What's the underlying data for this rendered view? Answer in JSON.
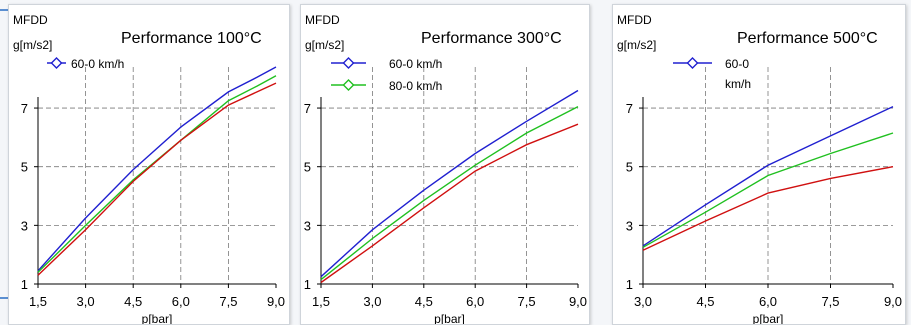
{
  "chart_data": [
    {
      "type": "line",
      "title": "Performance 100°C",
      "ylabel_line1": "MFDD",
      "ylabel_line2": "g[m/s2]",
      "xlabel": "p[bar]",
      "xlim": [
        1.5,
        9.0
      ],
      "ylim": [
        1,
        8.4
      ],
      "x_ticks": [
        "1,5",
        "3,0",
        "4,5",
        "6,0",
        "7,5",
        "9,0"
      ],
      "y_ticks": [
        "1",
        "3",
        "5",
        "7"
      ],
      "grid": true,
      "legend": [
        "60-0 km/h"
      ],
      "series": [
        {
          "color": "#2020d0",
          "x": [
            1.5,
            3.0,
            4.5,
            6.0,
            7.5,
            8.4,
            9.0
          ],
          "y": [
            1.45,
            3.25,
            4.9,
            6.35,
            7.55,
            8.05,
            8.4
          ]
        },
        {
          "color": "#20c020",
          "x": [
            1.5,
            3.0,
            4.5,
            6.0,
            7.5,
            8.4,
            9.0
          ],
          "y": [
            1.4,
            3.0,
            4.55,
            5.9,
            7.25,
            7.75,
            8.1
          ]
        },
        {
          "color": "#d01010",
          "x": [
            1.5,
            3.0,
            4.5,
            6.0,
            7.5,
            8.4,
            9.0
          ],
          "y": [
            1.3,
            2.85,
            4.5,
            5.9,
            7.1,
            7.55,
            7.85
          ]
        }
      ]
    },
    {
      "type": "line",
      "title": "Performance 300°C",
      "ylabel_line1": "MFDD",
      "ylabel_line2": "g[m/s2]",
      "xlabel": "p[bar]",
      "xlim": [
        1.5,
        9.0
      ],
      "ylim": [
        1,
        8.4
      ],
      "x_ticks": [
        "1,5",
        "3,0",
        "4,5",
        "6,0",
        "7,5",
        "9,0"
      ],
      "y_ticks": [
        "1",
        "3",
        "5",
        "7"
      ],
      "grid": true,
      "legend": [
        "60-0 km/h",
        "80-0 km/h"
      ],
      "series": [
        {
          "color": "#2020d0",
          "x": [
            1.5,
            3.0,
            4.5,
            6.0,
            7.5,
            9.0
          ],
          "y": [
            1.25,
            2.85,
            4.2,
            5.45,
            6.55,
            7.6
          ]
        },
        {
          "color": "#20c020",
          "x": [
            1.5,
            3.0,
            4.5,
            6.0,
            7.5,
            9.0
          ],
          "y": [
            1.15,
            2.55,
            3.85,
            5.05,
            6.15,
            7.05
          ]
        },
        {
          "color": "#d01010",
          "x": [
            1.5,
            3.0,
            4.5,
            6.0,
            7.5,
            9.0
          ],
          "y": [
            1.05,
            2.3,
            3.6,
            4.85,
            5.75,
            6.45
          ]
        }
      ]
    },
    {
      "type": "line",
      "title": "Performance 500°C",
      "ylabel_line1": "MFDD",
      "ylabel_line2": "g[m/s2]",
      "xlabel": "p[bar]",
      "xlim": [
        3.0,
        9.0
      ],
      "ylim": [
        1,
        8.4
      ],
      "x_ticks": [
        "3,0",
        "4,5",
        "6,0",
        "7,5",
        "9,0"
      ],
      "y_ticks": [
        "1",
        "3",
        "5",
        "7"
      ],
      "grid": true,
      "legend": [
        "60-0 km/h"
      ],
      "series": [
        {
          "color": "#2020d0",
          "x": [
            3.0,
            4.5,
            6.0,
            7.5,
            9.0
          ],
          "y": [
            2.3,
            3.7,
            5.05,
            6.05,
            7.05
          ]
        },
        {
          "color": "#20c020",
          "x": [
            3.0,
            4.5,
            6.0,
            7.5,
            9.0
          ],
          "y": [
            2.25,
            3.45,
            4.7,
            5.45,
            6.15
          ]
        },
        {
          "color": "#d01010",
          "x": [
            3.0,
            4.5,
            6.0,
            7.5,
            9.0
          ],
          "y": [
            2.15,
            3.15,
            4.1,
            4.6,
            5.0
          ]
        }
      ]
    }
  ]
}
